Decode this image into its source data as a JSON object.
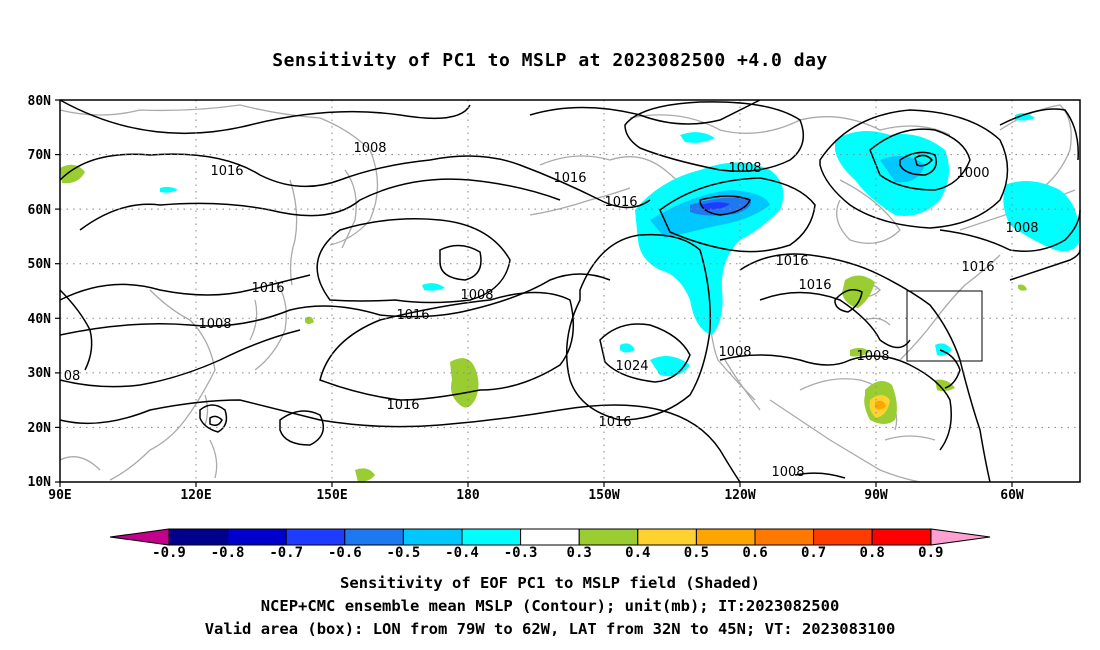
{
  "title": "Sensitivity of PC1 to MSLP at 2023082500 +4.0 day",
  "map": {
    "lat_ticks": [
      "80N",
      "70N",
      "60N",
      "50N",
      "40N",
      "30N",
      "20N",
      "10N"
    ],
    "lon_ticks": [
      "90E",
      "120E",
      "150E",
      "180",
      "150W",
      "120W",
      "90W",
      "60W"
    ],
    "contour_labels": [
      "1008",
      "1016",
      "1016",
      "1016",
      "1008",
      "1000",
      "1008",
      "1016",
      "1016",
      "1016",
      "1008",
      "1008",
      "1016",
      "1016",
      "08",
      "1024",
      "1008",
      "1008",
      "1016",
      "1008"
    ],
    "valid_box": {
      "lon_min": -79,
      "lon_max": -62,
      "lat_min": 32,
      "lat_max": 45
    }
  },
  "colorbar": {
    "labels": [
      "-0.9",
      "-0.8",
      "-0.7",
      "-0.6",
      "-0.5",
      "-0.4",
      "-0.3",
      "0.3",
      "0.4",
      "0.5",
      "0.6",
      "0.7",
      "0.8",
      "0.9"
    ],
    "colors": [
      "#c3008b",
      "#00008b",
      "#0000cd",
      "#1e3cff",
      "#1e78f0",
      "#00c8ff",
      "#00ffff",
      "#ffffff",
      "#9acd32",
      "#ffd232",
      "#ffa500",
      "#ff7800",
      "#ff3c00",
      "#ff0000",
      "#ffa0d2"
    ]
  },
  "captions": {
    "line1": "Sensitivity of EOF PC1 to MSLP field (Shaded)",
    "line2": "NCEP+CMC ensemble mean MSLP (Contour); unit(mb); IT:2023082500",
    "line3": "Valid area (box): LON from 79W to 62W, LAT from 32N to 45N; VT: 2023083100"
  }
}
